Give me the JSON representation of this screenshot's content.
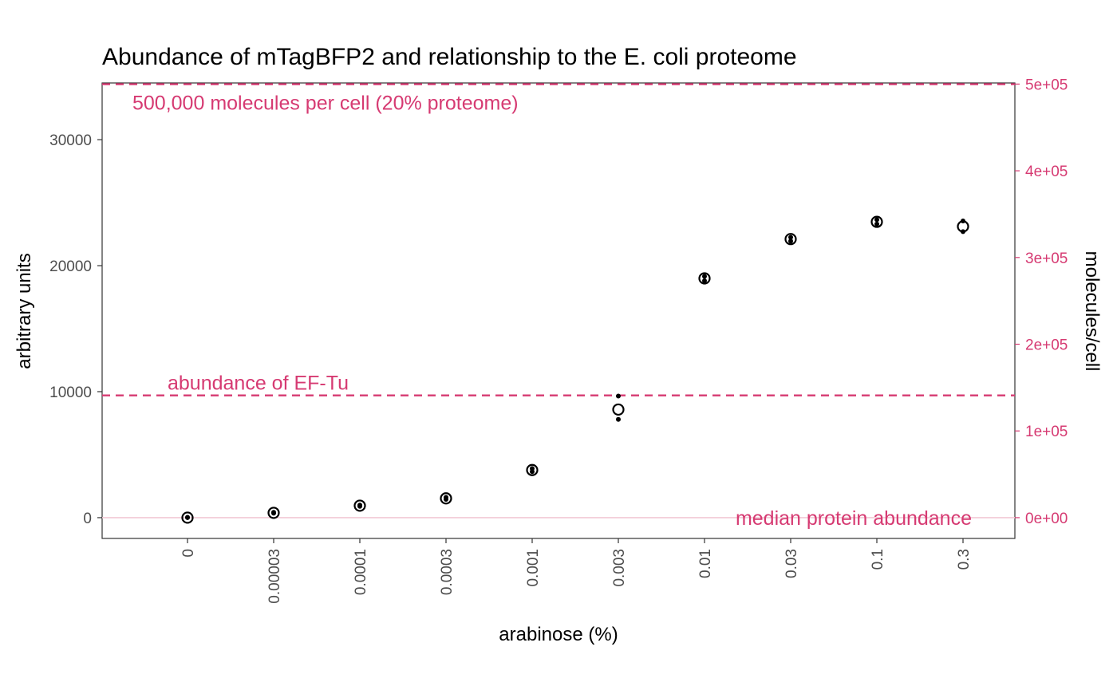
{
  "chart_data": {
    "type": "scatter",
    "title": "Abundance of mTagBFP2 and relationship to the E. coli proteome",
    "xlabel": "arabinose (%)",
    "ylabel": "arbitrary units",
    "y2label": "molecules/cell",
    "categories": [
      "0",
      "0.00003",
      "0.0001",
      "0.0003",
      "0.001",
      "0.003",
      "0.01",
      "0.03",
      "0.1",
      "0.3"
    ],
    "ylim": [
      -1650,
      34500
    ],
    "y_ticks": [
      0,
      10000,
      20000,
      30000
    ],
    "y_tick_labels": [
      "0",
      "10000",
      "20000",
      "30000"
    ],
    "y2_ticks": [
      0,
      100000,
      200000,
      300000,
      400000,
      500000
    ],
    "y2_tick_labels": [
      "0e+00",
      "1e+05",
      "2e+05",
      "3e+05",
      "4e+05",
      "5e+05"
    ],
    "y2_per_y": 14.53,
    "grid": false,
    "series": [
      {
        "marker": "open-circle",
        "values": [
          0,
          380,
          950,
          1530,
          3780,
          8580,
          18990,
          22110,
          23480,
          23110
        ]
      },
      {
        "marker": "dot",
        "points": [
          [
            "0",
            0
          ],
          [
            "0",
            30
          ],
          [
            "0.00003",
            350
          ],
          [
            "0.00003",
            420
          ],
          [
            "0.0001",
            900
          ],
          [
            "0.0001",
            1000
          ],
          [
            "0.0003",
            1450
          ],
          [
            "0.0003",
            1610
          ],
          [
            "0.001",
            3650
          ],
          [
            "0.001",
            3900
          ],
          [
            "0.003",
            9650
          ],
          [
            "0.003",
            7800
          ],
          [
            "0.01",
            18800
          ],
          [
            "0.01",
            19150
          ],
          [
            "0.03",
            21950
          ],
          [
            "0.03",
            22250
          ],
          [
            "0.1",
            23300
          ],
          [
            "0.1",
            23650
          ],
          [
            "0.3",
            22700
          ],
          [
            "0.3",
            23550
          ]
        ]
      }
    ],
    "reference_lines": [
      {
        "y": 34400,
        "style": "dashed",
        "label": "500,000 molecules per cell (20% proteome)",
        "label_anchor": "left"
      },
      {
        "y": 9700,
        "style": "dashed",
        "label": "abundance of EF-Tu",
        "label_anchor": "left"
      },
      {
        "y": 0,
        "style": "solid-light",
        "label": "median protein abundance",
        "label_anchor": "right"
      }
    ],
    "colors": {
      "reference": "#d63a72",
      "reference_light": "#f2c9d5",
      "points": "#000000",
      "axis": "#333333",
      "tick_text": "#4d4d4d"
    }
  }
}
